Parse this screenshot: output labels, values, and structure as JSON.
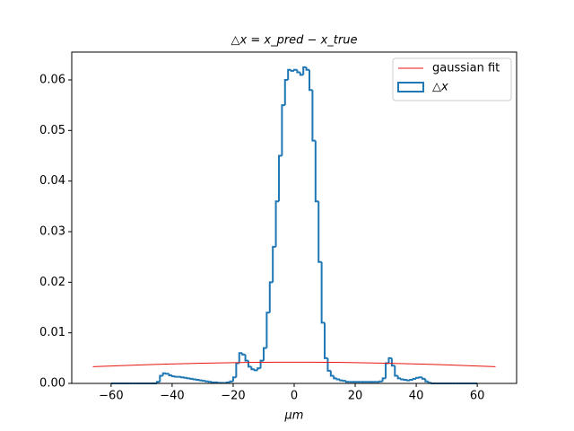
{
  "chart_data": {
    "type": "histogram",
    "title": "△x = x_pred − x_true",
    "xlabel": "μm",
    "xlim": [
      -72.9,
      72.9
    ],
    "ylim": [
      0,
      0.0655
    ],
    "xticks": [
      {
        "value": -60,
        "label": "−60"
      },
      {
        "value": -40,
        "label": "−40"
      },
      {
        "value": -20,
        "label": "−20"
      },
      0,
      20,
      40,
      60
    ],
    "yticks": [
      {
        "value": 0,
        "label": "0.00"
      },
      {
        "value": 0.01,
        "label": "0.01"
      },
      {
        "value": 0.02,
        "label": "0.02"
      },
      {
        "value": 0.03,
        "label": "0.03"
      },
      {
        "value": 0.04,
        "label": "0.04"
      },
      {
        "value": 0.05,
        "label": "0.05"
      },
      {
        "value": 0.06,
        "label": "0.06"
      }
    ],
    "legend": "upper right",
    "histogram": {
      "name": "△x",
      "color": "#1f77b4",
      "bins": [
        -60,
        -59,
        -58,
        -57,
        -56,
        -55,
        -54,
        -53,
        -52,
        -51,
        -50,
        -49,
        -48,
        -47,
        -46,
        -45,
        -44,
        -43,
        -42,
        -41,
        -40,
        -39,
        -38,
        -37,
        -36,
        -35,
        -34,
        -33,
        -32,
        -31,
        -30,
        -29,
        -28,
        -27,
        -26,
        -25,
        -24,
        -23,
        -22,
        -21,
        -20,
        -19,
        -18,
        -17,
        -16,
        -15,
        -14,
        -13,
        -12,
        -11,
        -10,
        -9,
        -8,
        -7,
        -6,
        -5,
        -4,
        -3,
        -2,
        -1,
        0,
        1,
        2,
        3,
        4,
        5,
        6,
        7,
        8,
        9,
        10,
        11,
        12,
        13,
        14,
        15,
        16,
        17,
        18,
        19,
        20,
        21,
        22,
        23,
        24,
        25,
        26,
        27,
        28,
        29,
        30,
        31,
        32,
        33,
        34,
        35,
        36,
        37,
        38,
        39,
        40,
        41,
        42,
        43,
        44,
        45,
        46,
        47,
        48,
        49,
        50,
        51,
        52,
        53,
        54,
        55,
        56,
        57,
        58,
        59,
        60
      ],
      "values": [
        0,
        0,
        0,
        0,
        0,
        0,
        0,
        0,
        0,
        0,
        0,
        0,
        0,
        0,
        0,
        0.0003,
        0.0015,
        0.002,
        0.0019,
        0.0016,
        0.0014,
        0.0013,
        0.0013,
        0.0012,
        0.0011,
        0.001,
        0.0009,
        0.0008,
        0.0007,
        0.0006,
        0.0005,
        0.0004,
        0.0003,
        0.0002,
        0.0002,
        0.0001,
        0.0001,
        0.0001,
        0.0002,
        0.0004,
        0.0012,
        0.004,
        0.006,
        0.0057,
        0.0045,
        0.0033,
        0.0028,
        0.0026,
        0.003,
        0.0045,
        0.007,
        0.014,
        0.02,
        0.027,
        0.036,
        0.045,
        0.055,
        0.06,
        0.062,
        0.0618,
        0.062,
        0.0615,
        0.061,
        0.0625,
        0.062,
        0.058,
        0.048,
        0.036,
        0.024,
        0.012,
        0.005,
        0.0025,
        0.0015,
        0.001,
        0.0008,
        0.0006,
        0.0005,
        0.0003,
        0.0003,
        0.0003,
        0.0003,
        0.0003,
        0.0003,
        0.0003,
        0.0003,
        0.0003,
        0.0003,
        0.0003,
        0.0004,
        0.001,
        0.004,
        0.005,
        0.0035,
        0.0015,
        0.001,
        0.0008,
        0.0007,
        0.0006,
        0.0007,
        0.0009,
        0.0011,
        0.0012,
        0.0009,
        0.0004,
        0.0001,
        0,
        0,
        0,
        0,
        0,
        0,
        0,
        0,
        0,
        0,
        0,
        0,
        0,
        0,
        0
      ]
    },
    "fit": {
      "type": "line",
      "name": "gaussian fit",
      "color": "#e8150f",
      "x": [
        -66,
        -60,
        -54,
        -48,
        -42,
        -36,
        -30,
        -24,
        -18,
        -12,
        -6,
        0,
        6,
        12,
        18,
        24,
        30,
        36,
        42,
        48,
        54,
        60,
        66
      ],
      "values": [
        0.0033,
        0.003443,
        0.003575,
        0.003697,
        0.003809,
        0.003909,
        0.003996,
        0.004068,
        0.004125,
        0.004167,
        0.0042,
        0.0042,
        0.0042,
        0.004167,
        0.004125,
        0.004068,
        0.003996,
        0.003909,
        0.003809,
        0.003697,
        0.003575,
        0.003443,
        0.0033
      ]
    }
  }
}
